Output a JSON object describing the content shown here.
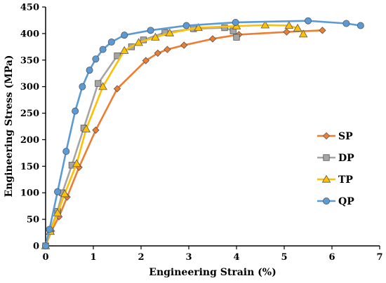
{
  "chart_data": {
    "type": "line",
    "xlabel": "Engineering Strain (%)",
    "ylabel": "Engineering Stress (MPa)",
    "xlim": [
      0,
      7
    ],
    "ylim": [
      0,
      450
    ],
    "x_ticks": [
      "0",
      "1",
      "2",
      "3",
      "4",
      "5",
      "6",
      "7"
    ],
    "y_ticks": [
      "0",
      "50",
      "100",
      "150",
      "200",
      "250",
      "300",
      "350",
      "400",
      "450"
    ],
    "grid": false,
    "legend_position": "right",
    "series": [
      {
        "name": "SP",
        "color": "#ED7D31",
        "marker": "diamond",
        "points": [
          [
            0,
            0
          ],
          [
            0.12,
            28
          ],
          [
            0.28,
            55
          ],
          [
            0.45,
            92
          ],
          [
            0.7,
            148
          ],
          [
            1.05,
            218
          ],
          [
            1.5,
            296
          ],
          [
            2.1,
            349
          ],
          [
            2.35,
            363
          ],
          [
            2.55,
            370
          ],
          [
            2.9,
            378
          ],
          [
            3.5,
            390
          ],
          [
            4.05,
            398
          ],
          [
            5.05,
            403
          ],
          [
            5.8,
            406
          ]
        ]
      },
      {
        "name": "DP",
        "color": "#A5A5A5",
        "marker": "square",
        "points": [
          [
            0,
            0
          ],
          [
            0.1,
            30
          ],
          [
            0.25,
            65
          ],
          [
            0.35,
            100
          ],
          [
            0.55,
            152
          ],
          [
            0.8,
            222
          ],
          [
            1.1,
            306
          ],
          [
            1.5,
            358
          ],
          [
            1.8,
            375
          ],
          [
            2.05,
            388
          ],
          [
            2.5,
            402
          ],
          [
            3.1,
            409
          ],
          [
            3.75,
            411
          ],
          [
            3.93,
            405
          ],
          [
            4.0,
            393
          ]
        ]
      },
      {
        "name": "TP",
        "color": "#FFC000",
        "marker": "triangle",
        "points": [
          [
            0,
            0
          ],
          [
            0.1,
            27
          ],
          [
            0.25,
            62
          ],
          [
            0.4,
            98
          ],
          [
            0.65,
            155
          ],
          [
            0.85,
            220
          ],
          [
            1.2,
            300
          ],
          [
            1.65,
            368
          ],
          [
            1.95,
            383
          ],
          [
            2.3,
            393
          ],
          [
            2.6,
            401
          ],
          [
            3.2,
            411
          ],
          [
            4.0,
            414
          ],
          [
            4.6,
            416
          ],
          [
            5.1,
            415
          ],
          [
            5.28,
            410
          ],
          [
            5.4,
            399
          ]
        ]
      },
      {
        "name": "QP",
        "color": "#5B9BD5",
        "marker": "circle",
        "points": [
          [
            0,
            0
          ],
          [
            0.08,
            31
          ],
          [
            0.25,
            102
          ],
          [
            0.43,
            178
          ],
          [
            0.62,
            254
          ],
          [
            0.77,
            300
          ],
          [
            0.92,
            331
          ],
          [
            1.05,
            352
          ],
          [
            1.2,
            370
          ],
          [
            1.38,
            384
          ],
          [
            1.65,
            397
          ],
          [
            2.2,
            406
          ],
          [
            2.95,
            415
          ],
          [
            3.98,
            421
          ],
          [
            5.5,
            424
          ],
          [
            6.3,
            419
          ],
          [
            6.6,
            415
          ]
        ]
      }
    ]
  }
}
